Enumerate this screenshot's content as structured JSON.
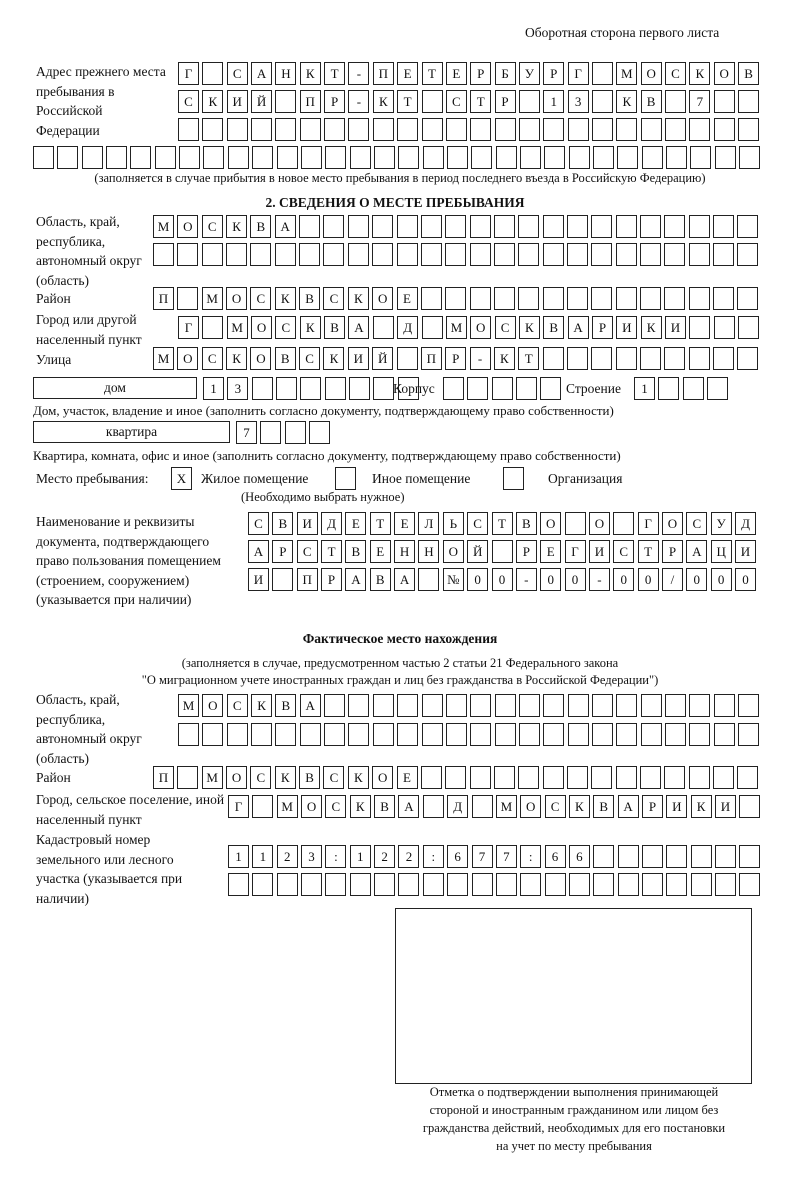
{
  "header": {
    "title": "Оборотная сторона первого листа"
  },
  "previous_address": {
    "label": "Адрес прежнего места пребывания в Российской Федерации",
    "rows": [
      [
        "Г",
        "",
        "С",
        "А",
        "Н",
        "К",
        "Т",
        "-",
        "П",
        "Е",
        "Т",
        "Е",
        "Р",
        "Б",
        "У",
        "Р",
        "Г",
        "",
        "М",
        "О",
        "С",
        "К",
        "О",
        "В"
      ],
      [
        "С",
        "К",
        "И",
        "Й",
        "",
        "П",
        "Р",
        "-",
        "К",
        "Т",
        "",
        "С",
        "Т",
        "Р",
        "",
        "1",
        "3",
        "",
        "К",
        "В",
        "",
        "7",
        "",
        ""
      ],
      [
        "",
        "",
        "",
        "",
        "",
        "",
        "",
        "",
        "",
        "",
        "",
        "",
        "",
        "",
        "",
        "",
        "",
        "",
        "",
        "",
        "",
        "",
        "",
        ""
      ],
      [
        "",
        "",
        "",
        "",
        "",
        "",
        "",
        "",
        "",
        "",
        "",
        "",
        "",
        "",
        "",
        "",
        "",
        "",
        "",
        "",
        "",
        "",
        "",
        "",
        "",
        "",
        "",
        "",
        "",
        ""
      ]
    ],
    "note": "(заполняется в случае прибытия в новое место пребывания в период последнего въезда в Российскую Федерацию)"
  },
  "stay": {
    "heading": "2. СВЕДЕНИЯ О МЕСТЕ ПРЕБЫВАНИЯ",
    "region_label": "Область, край, республика, автономный округ (область)",
    "region_rows": [
      [
        "М",
        "О",
        "С",
        "К",
        "В",
        "А",
        "",
        "",
        "",
        "",
        "",
        "",
        "",
        "",
        "",
        "",
        "",
        "",
        "",
        "",
        "",
        "",
        "",
        "",
        ""
      ],
      [
        "",
        "",
        "",
        "",
        "",
        "",
        "",
        "",
        "",
        "",
        "",
        "",
        "",
        "",
        "",
        "",
        "",
        "",
        "",
        "",
        "",
        "",
        "",
        "",
        ""
      ]
    ],
    "district_label": "Район",
    "district": [
      "П",
      "",
      "М",
      "О",
      "С",
      "К",
      "В",
      "С",
      "К",
      "О",
      "Е",
      "",
      "",
      "",
      "",
      "",
      "",
      "",
      "",
      "",
      "",
      "",
      "",
      "",
      ""
    ],
    "city_label": "Город или другой населенный пункт",
    "city": [
      "Г",
      "",
      "М",
      "О",
      "С",
      "К",
      "В",
      "А",
      "",
      "Д",
      "",
      "М",
      "О",
      "С",
      "К",
      "В",
      "А",
      "Р",
      "И",
      "К",
      "И",
      "",
      "",
      ""
    ],
    "street_label": "Улица",
    "street": [
      "М",
      "О",
      "С",
      "К",
      "О",
      "В",
      "С",
      "К",
      "И",
      "Й",
      "",
      "П",
      "Р",
      "-",
      "К",
      "Т",
      "",
      "",
      "",
      "",
      "",
      "",
      "",
      "",
      ""
    ],
    "house_type": "дом",
    "house": [
      "1",
      "3",
      "",
      "",
      "",
      "",
      "",
      "",
      ""
    ],
    "korpus_label": "Корпус",
    "korpus": [
      "",
      "",
      "",
      "",
      ""
    ],
    "building_label": "Строение",
    "building": [
      "1",
      "",
      "",
      ""
    ],
    "house_note": "Дом, участок, владение и иное (заполнить согласно документу, подтверждающему право собственности)",
    "apt_type": "квартира",
    "apt": [
      "7",
      "",
      "",
      ""
    ],
    "apt_note": "Квартира, комната, офис и иное (заполнить согласно документу, подтверждающему право собственности)",
    "place_label": "Место пребывания:",
    "place_options": [
      {
        "label": "Жилое помещение",
        "mark": "X"
      },
      {
        "label": "Иное помещение",
        "mark": ""
      },
      {
        "label": "Организация",
        "mark": ""
      }
    ],
    "place_note": "(Необходимо выбрать нужное)",
    "doc_label": "Наименование и реквизиты документа, подтверждающего право пользования помещением (строением, сооружением) (указывается при наличии)",
    "doc_rows": [
      [
        "С",
        "В",
        "И",
        "Д",
        "Е",
        "Т",
        "Е",
        "Л",
        "Ь",
        "С",
        "Т",
        "В",
        "О",
        "",
        "О",
        "",
        "Г",
        "О",
        "С",
        "У",
        "Д"
      ],
      [
        "А",
        "Р",
        "С",
        "Т",
        "В",
        "Е",
        "Н",
        "Н",
        "О",
        "Й",
        "",
        "Р",
        "Е",
        "Г",
        "И",
        "С",
        "Т",
        "Р",
        "А",
        "Ц",
        "И"
      ],
      [
        "И",
        "",
        "П",
        "Р",
        "А",
        "В",
        "А",
        "",
        "№",
        "0",
        "0",
        "-",
        "0",
        "0",
        "-",
        "0",
        "0",
        "/",
        "0",
        "0",
        "0"
      ]
    ]
  },
  "actual": {
    "heading": "Фактическое место нахождения",
    "note1": "(заполняется в случае, предусмотренном частью 2 статьи 21 Федерального закона",
    "note2": "\"О миграционном учете иностранных граждан и лиц без гражданства в Российской Федерации\")",
    "region_label": "Область, край, республика, автономный округ (область)",
    "region_rows": [
      [
        "М",
        "О",
        "С",
        "К",
        "В",
        "А",
        "",
        "",
        "",
        "",
        "",
        "",
        "",
        "",
        "",
        "",
        "",
        "",
        "",
        "",
        "",
        "",
        "",
        ""
      ],
      [
        "",
        "",
        "",
        "",
        "",
        "",
        "",
        "",
        "",
        "",
        "",
        "",
        "",
        "",
        "",
        "",
        "",
        "",
        "",
        "",
        "",
        "",
        "",
        ""
      ]
    ],
    "district_label": "Район",
    "district": [
      "П",
      "",
      "М",
      "О",
      "С",
      "К",
      "В",
      "С",
      "К",
      "О",
      "Е",
      "",
      "",
      "",
      "",
      "",
      "",
      "",
      "",
      "",
      "",
      "",
      "",
      "",
      ""
    ],
    "city_label": "Город, сельское поселение, иной населенный пункт",
    "city": [
      "Г",
      "",
      "М",
      "О",
      "С",
      "К",
      "В",
      "А",
      "",
      "Д",
      "",
      "М",
      "О",
      "С",
      "К",
      "В",
      "А",
      "Р",
      "И",
      "К",
      "И",
      ""
    ],
    "cadastral_label": "Кадастровый номер земельного или лесного участка (указывается при наличии)",
    "cadastral_rows": [
      [
        "1",
        "1",
        "2",
        "3",
        ":",
        "1",
        "2",
        "2",
        ":",
        "6",
        "7",
        "7",
        ":",
        "6",
        "6",
        "",
        "",
        "",
        "",
        "",
        "",
        ""
      ],
      [
        "",
        "",
        "",
        "",
        "",
        "",
        "",
        "",
        "",
        "",
        "",
        "",
        "",
        "",
        "",
        "",
        "",
        "",
        "",
        "",
        "",
        ""
      ]
    ]
  },
  "confirmation": {
    "caption_lines": [
      "Отметка о подтверждении выполнения принимающей",
      "стороной и иностранным гражданином или лицом без",
      "гражданства действий, необходимых для его постановки",
      "на учет по месту пребывания"
    ]
  }
}
